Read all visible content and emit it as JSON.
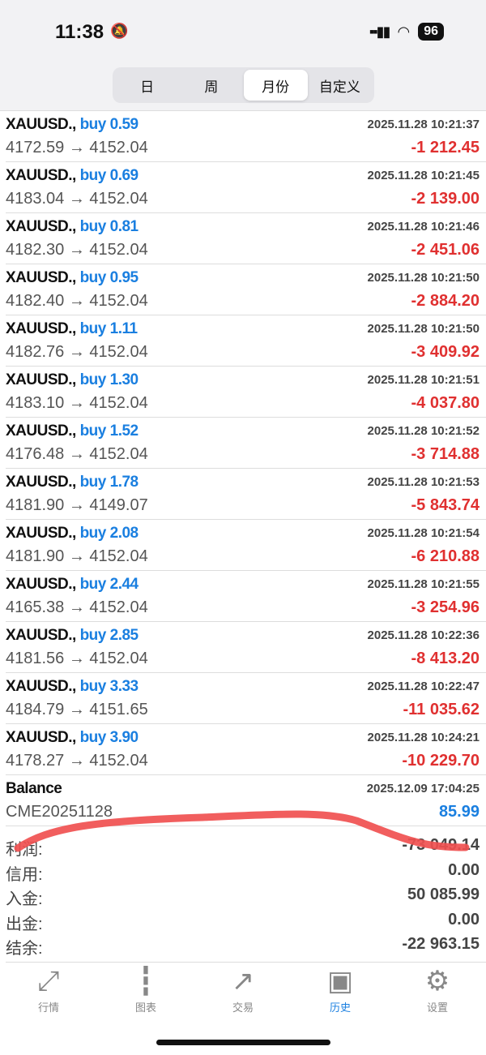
{
  "status": {
    "time": "11:38",
    "battery": "96"
  },
  "segments": [
    {
      "label": "日"
    },
    {
      "label": "周"
    },
    {
      "label": "月份",
      "active": true
    },
    {
      "label": "自定义"
    }
  ],
  "trades": [
    {
      "symbol": "XAUUSD.,",
      "side": "buy 0.59",
      "time": "2025.11.28 10:21:37",
      "prices": "4172.59 → 4152.04",
      "profit": "-1 212.45"
    },
    {
      "symbol": "XAUUSD.,",
      "side": "buy 0.69",
      "time": "2025.11.28 10:21:45",
      "prices": "4183.04 → 4152.04",
      "profit": "-2 139.00"
    },
    {
      "symbol": "XAUUSD.,",
      "side": "buy 0.81",
      "time": "2025.11.28 10:21:46",
      "prices": "4182.30 → 4152.04",
      "profit": "-2 451.06"
    },
    {
      "symbol": "XAUUSD.,",
      "side": "buy 0.95",
      "time": "2025.11.28 10:21:50",
      "prices": "4182.40 → 4152.04",
      "profit": "-2 884.20"
    },
    {
      "symbol": "XAUUSD.,",
      "side": "buy 1.11",
      "time": "2025.11.28 10:21:50",
      "prices": "4182.76 → 4152.04",
      "profit": "-3 409.92"
    },
    {
      "symbol": "XAUUSD.,",
      "side": "buy 1.30",
      "time": "2025.11.28 10:21:51",
      "prices": "4183.10 → 4152.04",
      "profit": "-4 037.80"
    },
    {
      "symbol": "XAUUSD.,",
      "side": "buy 1.52",
      "time": "2025.11.28 10:21:52",
      "prices": "4176.48 → 4152.04",
      "profit": "-3 714.88"
    },
    {
      "symbol": "XAUUSD.,",
      "side": "buy 1.78",
      "time": "2025.11.28 10:21:53",
      "prices": "4181.90 → 4149.07",
      "profit": "-5 843.74"
    },
    {
      "symbol": "XAUUSD.,",
      "side": "buy 2.08",
      "time": "2025.11.28 10:21:54",
      "prices": "4181.90 → 4152.04",
      "profit": "-6 210.88"
    },
    {
      "symbol": "XAUUSD.,",
      "side": "buy 2.44",
      "time": "2025.11.28 10:21:55",
      "prices": "4165.38 → 4152.04",
      "profit": "-3 254.96"
    },
    {
      "symbol": "XAUUSD.,",
      "side": "buy 2.85",
      "time": "2025.11.28 10:22:36",
      "prices": "4181.56 → 4152.04",
      "profit": "-8 413.20"
    },
    {
      "symbol": "XAUUSD.,",
      "side": "buy 3.33",
      "time": "2025.11.28 10:22:47",
      "prices": "4184.79 → 4151.65",
      "profit": "-11 035.62"
    },
    {
      "symbol": "XAUUSD.,",
      "side": "buy 3.90",
      "time": "2025.11.28 10:24:21",
      "prices": "4178.27 → 4152.04",
      "profit": "-10 229.70"
    }
  ],
  "balance": {
    "title": "Balance",
    "time": "2025.12.09 17:04:25",
    "comment": "CME20251128",
    "amount": "85.99"
  },
  "summary": [
    {
      "label": "利润:",
      "value": "-73 049.14"
    },
    {
      "label": "信用:",
      "value": "0.00"
    },
    {
      "label": "入金:",
      "value": "50 085.99"
    },
    {
      "label": "出金:",
      "value": "0.00"
    },
    {
      "label": "结余:",
      "value": "-22 963.15"
    }
  ],
  "tabbar": [
    {
      "label": "行情",
      "icon": "quotes-arrows-icon"
    },
    {
      "label": "图表",
      "icon": "candlestick-icon"
    },
    {
      "label": "交易",
      "icon": "trade-trend-icon"
    },
    {
      "label": "历史",
      "icon": "history-inbox-icon",
      "active": true
    },
    {
      "label": "设置",
      "icon": "gear-icon"
    }
  ],
  "colors": {
    "accent": "#1a7fe0",
    "loss": "#e03030",
    "annotation": "#f05050"
  }
}
